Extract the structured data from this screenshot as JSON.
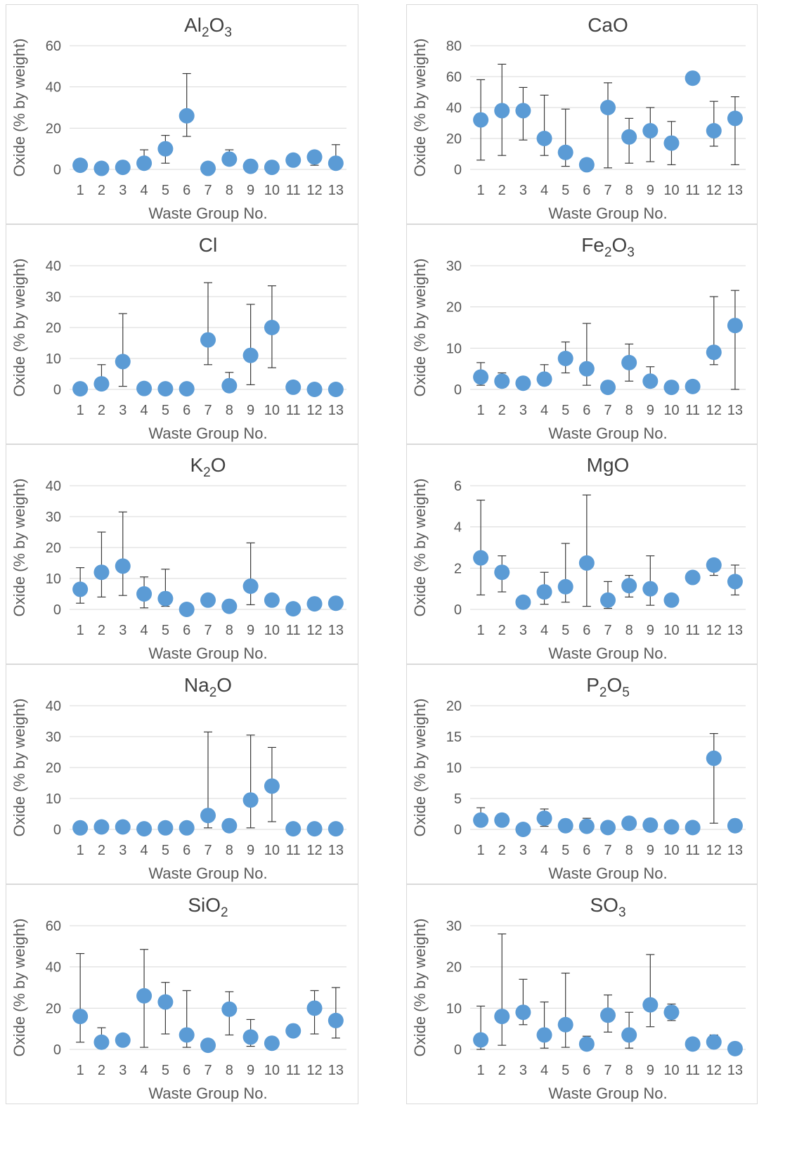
{
  "chart_data": [
    {
      "type": "scatter",
      "title_main": "Al",
      "title_sub1": "2",
      "title_mid": "O",
      "title_sub2": "3",
      "xlabel": "Waste Group No.",
      "ylabel": "Oxide (% by weight)",
      "ylim": [
        0,
        60
      ],
      "yticks": [
        0,
        20,
        40,
        60
      ],
      "x": [
        1,
        2,
        3,
        4,
        5,
        6,
        7,
        8,
        9,
        10,
        11,
        12,
        13
      ],
      "y": [
        2,
        0.5,
        1,
        3,
        10,
        26,
        0.5,
        5,
        1.5,
        1,
        4.5,
        6,
        3
      ],
      "err_upper": [
        null,
        null,
        null,
        9.5,
        16.5,
        46.5,
        5.5,
        9.5,
        null,
        null,
        null,
        7,
        12
      ],
      "err_lower": [
        null,
        null,
        null,
        0.5,
        3,
        16,
        null,
        4,
        null,
        null,
        null,
        2,
        0.5
      ],
      "grid": true
    },
    {
      "type": "scatter",
      "title_main": "CaO",
      "xlabel": "Waste Group No.",
      "ylabel": "Oxide (% by weight)",
      "ylim": [
        0,
        80
      ],
      "yticks": [
        0,
        20,
        40,
        60,
        80
      ],
      "x": [
        1,
        2,
        3,
        4,
        5,
        6,
        7,
        8,
        9,
        10,
        11,
        12,
        13
      ],
      "y": [
        32,
        38,
        38,
        20,
        11,
        3,
        40,
        21,
        25,
        17,
        59,
        25,
        33
      ],
      "err_upper": [
        58,
        68,
        53,
        48,
        39,
        null,
        56,
        33,
        40,
        31,
        null,
        44,
        47
      ],
      "err_lower": [
        6,
        9,
        19,
        9,
        2,
        null,
        1,
        4,
        5,
        3,
        null,
        15,
        3
      ],
      "grid": true
    },
    {
      "type": "scatter",
      "title_main": "Cl",
      "xlabel": "Waste Group No.",
      "ylabel": "Oxide (% by weight)",
      "ylim": [
        0,
        40
      ],
      "yticks": [
        0,
        10,
        20,
        30,
        40
      ],
      "x": [
        1,
        2,
        3,
        4,
        5,
        6,
        7,
        8,
        9,
        10,
        11,
        12,
        13
      ],
      "y": [
        0.2,
        1.8,
        9,
        0.3,
        0.2,
        0.2,
        16,
        1.2,
        11,
        20,
        0.7,
        0,
        0
      ],
      "err_upper": [
        null,
        8,
        24.5,
        null,
        null,
        null,
        34.5,
        5.5,
        27.5,
        33.5,
        null,
        null,
        null
      ],
      "err_lower": [
        null,
        0,
        1,
        null,
        null,
        null,
        8,
        0,
        1.5,
        7,
        null,
        null,
        null
      ],
      "grid": true
    },
    {
      "type": "scatter",
      "title_main": "Fe",
      "title_sub1": "2",
      "title_mid": "O",
      "title_sub2": "3",
      "xlabel": "Waste Group No.",
      "ylabel": "Oxide (% by weight)",
      "ylim": [
        0,
        30
      ],
      "yticks": [
        0,
        10,
        20,
        30
      ],
      "x": [
        1,
        2,
        3,
        4,
        5,
        6,
        7,
        8,
        9,
        10,
        11,
        12,
        13
      ],
      "y": [
        3,
        2,
        1.5,
        2.5,
        7.5,
        5,
        0.5,
        6.5,
        2,
        0.5,
        0.7,
        9,
        15.5
      ],
      "err_upper": [
        6.5,
        4,
        null,
        6,
        11.5,
        16,
        null,
        11,
        5.5,
        null,
        null,
        22.5,
        24
      ],
      "err_lower": [
        1,
        0.5,
        null,
        1,
        4,
        1,
        null,
        2,
        0.5,
        null,
        null,
        6,
        0
      ],
      "grid": true
    },
    {
      "type": "scatter",
      "title_main": "K",
      "title_sub1": "2",
      "title_mid": "O",
      "xlabel": "Waste Group No.",
      "ylabel": "Oxide (% by weight)",
      "ylim": [
        0,
        40
      ],
      "yticks": [
        0,
        10,
        20,
        30,
        40
      ],
      "x": [
        1,
        2,
        3,
        4,
        5,
        6,
        7,
        8,
        9,
        10,
        11,
        12,
        13
      ],
      "y": [
        6.5,
        12,
        14,
        5,
        3.5,
        0,
        3,
        1,
        7.5,
        3,
        0.2,
        1.8,
        2
      ],
      "err_upper": [
        13.5,
        25,
        31.5,
        10.5,
        13,
        null,
        null,
        null,
        21.5,
        null,
        null,
        null,
        null
      ],
      "err_lower": [
        2,
        4,
        4.5,
        0.5,
        1,
        null,
        null,
        null,
        1.5,
        null,
        null,
        null,
        null
      ],
      "grid": true
    },
    {
      "type": "scatter",
      "title_main": "MgO",
      "xlabel": "Waste Group No.",
      "ylabel": "Oxide (% by weight)",
      "ylim": [
        0,
        6
      ],
      "yticks": [
        0,
        2,
        4,
        6
      ],
      "x": [
        1,
        2,
        3,
        4,
        5,
        6,
        7,
        8,
        9,
        10,
        11,
        12,
        13
      ],
      "y": [
        2.5,
        1.8,
        0.35,
        0.85,
        1.1,
        2.25,
        0.45,
        1.15,
        1,
        0.45,
        1.55,
        2.15,
        1.35
      ],
      "err_upper": [
        5.3,
        2.6,
        null,
        1.8,
        3.2,
        5.55,
        1.35,
        1.65,
        2.6,
        null,
        null,
        2.4,
        2.15
      ],
      "err_lower": [
        0.7,
        0.85,
        null,
        0.25,
        0.35,
        0.15,
        0.05,
        0.6,
        0.2,
        null,
        null,
        1.65,
        0.7
      ],
      "grid": true
    },
    {
      "type": "scatter",
      "title_main": "Na",
      "title_sub1": "2",
      "title_mid": "O",
      "xlabel": "Waste Group No.",
      "ylabel": "Oxide (% by weight)",
      "ylim": [
        0,
        40
      ],
      "yticks": [
        0,
        10,
        20,
        30,
        40
      ],
      "x": [
        1,
        2,
        3,
        4,
        5,
        6,
        7,
        8,
        9,
        10,
        11,
        12,
        13
      ],
      "y": [
        0.5,
        0.8,
        0.8,
        0.2,
        0.5,
        0.5,
        4.5,
        1.2,
        9.5,
        14,
        0.2,
        0.2,
        0.2
      ],
      "err_upper": [
        null,
        null,
        null,
        null,
        null,
        null,
        31.5,
        null,
        30.5,
        26.5,
        null,
        null,
        null
      ],
      "err_lower": [
        null,
        null,
        null,
        null,
        null,
        null,
        0.5,
        null,
        0.5,
        2.5,
        null,
        null,
        null
      ],
      "grid": true
    },
    {
      "type": "scatter",
      "title_main": "P",
      "title_sub1": "2",
      "title_mid": "O",
      "title_sub2": "5",
      "xlabel": "Waste Group No.",
      "ylabel": "Oxide (% by weight)",
      "ylim": [
        0,
        20
      ],
      "yticks": [
        0,
        5,
        10,
        15,
        20
      ],
      "x": [
        1,
        2,
        3,
        4,
        5,
        6,
        7,
        8,
        9,
        10,
        11,
        12,
        13
      ],
      "y": [
        1.5,
        1.5,
        0,
        1.8,
        0.6,
        0.5,
        0.3,
        1,
        0.7,
        0.4,
        0.3,
        11.5,
        0.6
      ],
      "err_upper": [
        3.5,
        2.5,
        null,
        3.3,
        null,
        1.8,
        null,
        null,
        null,
        null,
        null,
        15.5,
        null
      ],
      "err_lower": [
        0.5,
        0.5,
        null,
        0.5,
        null,
        0,
        null,
        null,
        null,
        null,
        null,
        1,
        null
      ],
      "grid": true
    },
    {
      "type": "scatter",
      "title_main": "SiO",
      "title_sub1": "2",
      "xlabel": "Waste Group No.",
      "ylabel": "Oxide (% by weight)",
      "ylim": [
        0,
        60
      ],
      "yticks": [
        0,
        20,
        40,
        60
      ],
      "x": [
        1,
        2,
        3,
        4,
        5,
        6,
        7,
        8,
        9,
        10,
        11,
        12,
        13
      ],
      "y": [
        16,
        3.5,
        4.5,
        26,
        23,
        7,
        2,
        19.5,
        6,
        3,
        9,
        20,
        14
      ],
      "err_upper": [
        46.5,
        10.5,
        null,
        48.5,
        32.5,
        28.5,
        null,
        28,
        14.5,
        null,
        null,
        28.5,
        30
      ],
      "err_lower": [
        3.5,
        1,
        null,
        1,
        7.5,
        1,
        null,
        7,
        1.5,
        null,
        null,
        7.5,
        5.5
      ],
      "grid": true
    },
    {
      "type": "scatter",
      "title_main": "SO",
      "title_sub1": "3",
      "xlabel": "Waste Group No.",
      "ylabel": "Oxide (% by weight)",
      "ylim": [
        0,
        30
      ],
      "yticks": [
        0,
        10,
        20,
        30
      ],
      "x": [
        1,
        2,
        3,
        4,
        5,
        6,
        7,
        8,
        9,
        10,
        11,
        12,
        13
      ],
      "y": [
        2.3,
        8,
        9,
        3.5,
        6,
        1.3,
        8.3,
        3.5,
        10.8,
        9,
        1.3,
        1.8,
        0.2
      ],
      "err_upper": [
        10.5,
        28,
        17,
        11.5,
        18.5,
        3.2,
        13.2,
        9,
        23,
        11,
        null,
        3.5,
        null
      ],
      "err_lower": [
        0,
        1,
        6,
        0.3,
        0.5,
        0.3,
        4.2,
        0.3,
        5.5,
        7,
        null,
        1,
        null
      ],
      "grid": true
    }
  ],
  "colors": {
    "marker": "#5b9bd5",
    "grid": "#d9d9d9",
    "text": "#595959",
    "title": "#404040",
    "errorbar": "#3a3a3a"
  }
}
